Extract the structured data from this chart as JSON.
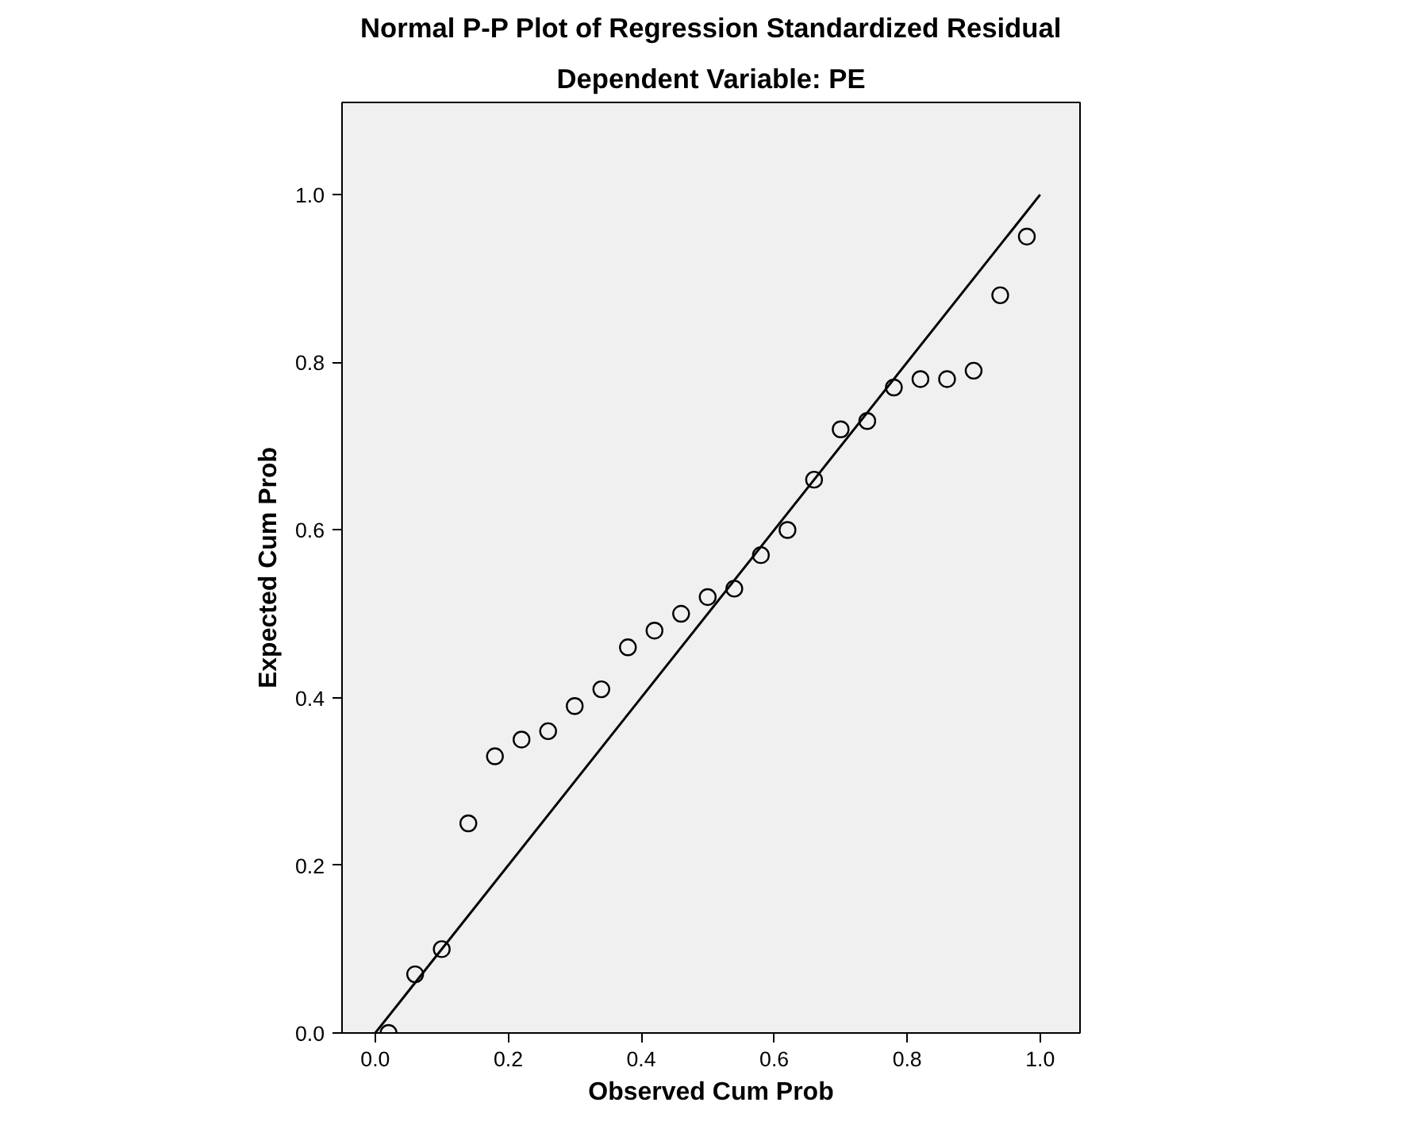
{
  "chart_data": {
    "type": "scatter",
    "title": "Normal P-P Plot of Regression Standardized Residual",
    "subtitle": "Dependent Variable: PE",
    "xlabel": "Observed Cum Prob",
    "ylabel": "Expected Cum Prob",
    "xlim": [
      -0.05,
      1.06
    ],
    "ylim": [
      0,
      1.11
    ],
    "xticks": [
      {
        "value": 0,
        "label": "0.0"
      },
      0.2,
      0.4,
      0.6,
      0.8,
      {
        "value": 1,
        "label": "1.0"
      }
    ],
    "yticks": [
      {
        "value": 0,
        "label": "0.0"
      },
      0.2,
      0.4,
      0.6,
      0.8,
      {
        "value": 1,
        "label": "1.0"
      }
    ],
    "grid": false,
    "series": [
      {
        "marker": "circle",
        "color": "#000000",
        "x": [
          0.02,
          0.06,
          0.1,
          0.14,
          0.18,
          0.22,
          0.26,
          0.3,
          0.34,
          0.38,
          0.42,
          0.46,
          0.5,
          0.54,
          0.58,
          0.62,
          0.66,
          0.7,
          0.74,
          0.78,
          0.82,
          0.86,
          0.9,
          0.94,
          0.98
        ],
        "values": [
          0.0,
          0.07,
          0.1,
          0.25,
          0.33,
          0.35,
          0.36,
          0.39,
          0.41,
          0.46,
          0.48,
          0.5,
          0.52,
          0.53,
          0.57,
          0.6,
          0.66,
          0.72,
          0.73,
          0.77,
          0.78,
          0.78,
          0.79,
          0.88,
          0.95
        ]
      },
      {
        "type": "line",
        "color": "#000000",
        "x": [
          0,
          1
        ],
        "values": [
          0,
          1
        ],
        "line_style": "solid",
        "marker": "none"
      }
    ]
  }
}
